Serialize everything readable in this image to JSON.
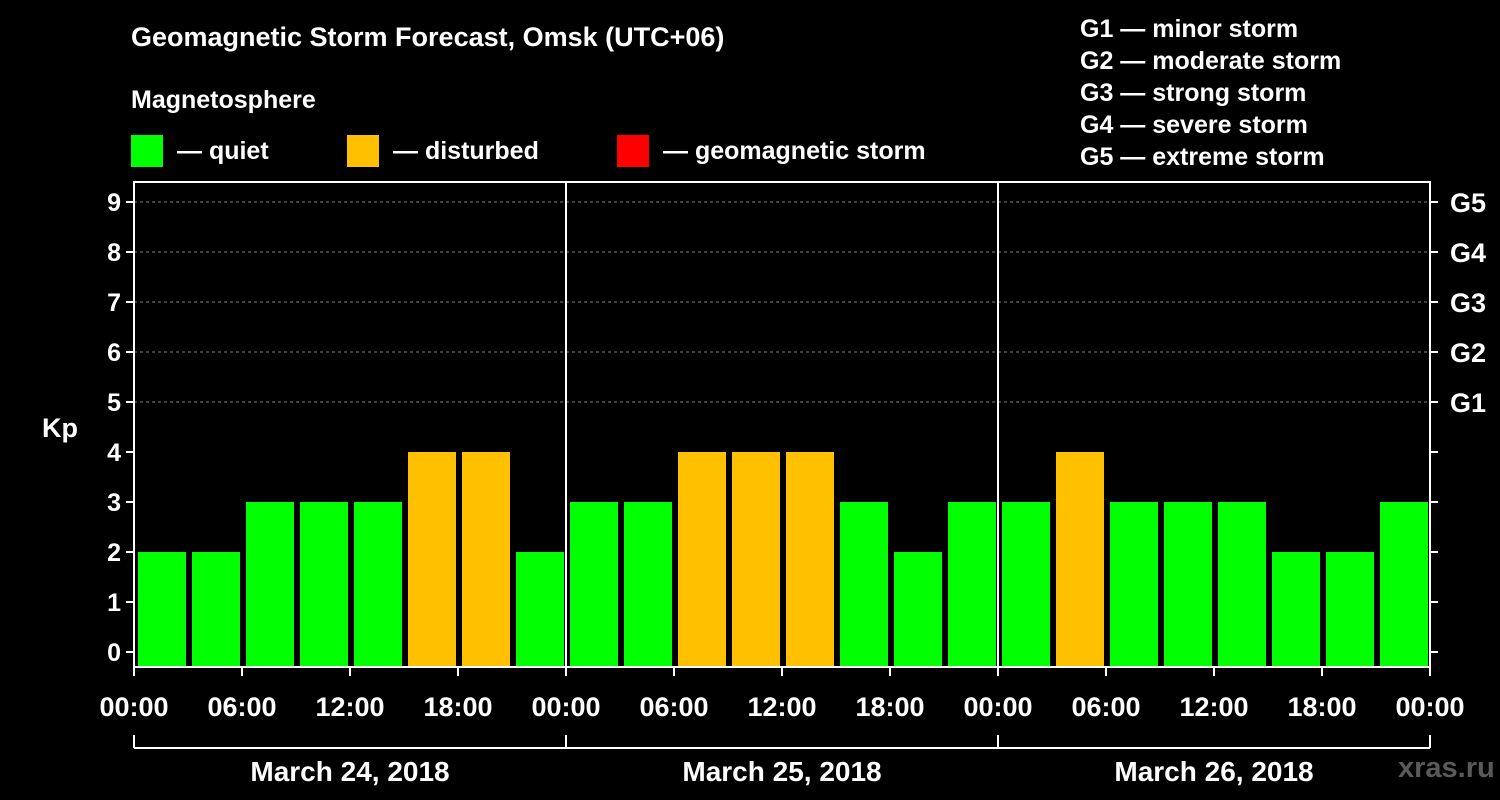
{
  "chart_data": {
    "type": "bar",
    "title": "Geomagnetic Storm Forecast, Omsk (UTC+06)",
    "legend_title": "Magnetosphere",
    "legend": [
      {
        "label": "— quiet",
        "color": "#00FF00"
      },
      {
        "label": "— disturbed",
        "color": "#FFC000"
      },
      {
        "label": "— geomagnetic storm",
        "color": "#FF0000"
      }
    ],
    "storm_scale": [
      "G1 — minor storm",
      "G2 — moderate storm",
      "G3 — strong storm",
      "G4 — severe storm",
      "G5 — extreme storm"
    ],
    "ylabel": "Kp",
    "ylim": [
      0,
      9
    ],
    "yticks": [
      "0",
      "1",
      "2",
      "3",
      "4",
      "5",
      "6",
      "7",
      "8",
      "9"
    ],
    "right_ticks": [
      {
        "kp": 5,
        "label": "G1"
      },
      {
        "kp": 6,
        "label": "G2"
      },
      {
        "kp": 7,
        "label": "G3"
      },
      {
        "kp": 8,
        "label": "G4"
      },
      {
        "kp": 9,
        "label": "G5"
      }
    ],
    "grid_from_kp": 5,
    "time_labels": [
      "00:00",
      "06:00",
      "12:00",
      "18:00",
      "00:00",
      "06:00",
      "12:00",
      "18:00",
      "00:00",
      "06:00",
      "12:00",
      "18:00",
      "00:00"
    ],
    "days": [
      "March 24, 2018",
      "March 25, 2018",
      "March 26, 2018"
    ],
    "interval_hours": 3,
    "values": [
      2,
      2,
      3,
      3,
      3,
      4,
      4,
      2,
      3,
      3,
      4,
      4,
      4,
      3,
      2,
      3,
      3,
      4,
      3,
      3,
      3,
      2,
      2,
      3
    ],
    "quiet_max": 3,
    "disturbed_max": 4,
    "watermark": "xras.ru"
  }
}
